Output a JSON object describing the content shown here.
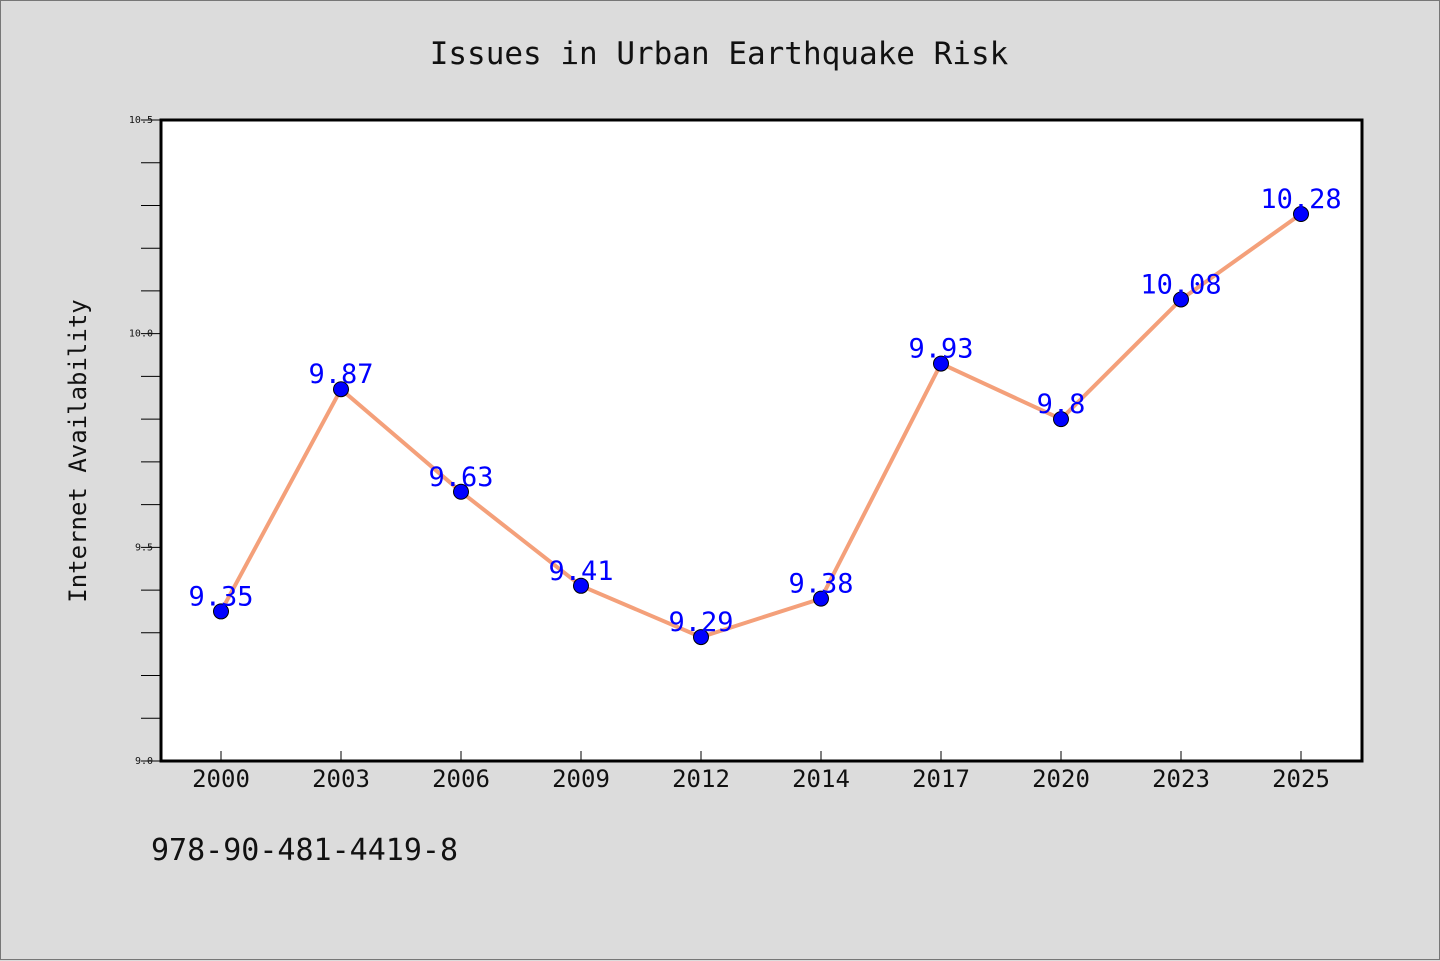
{
  "chart_data": {
    "type": "line",
    "title": "Issues in Urban Earthquake Risk",
    "xlabel": "",
    "ylabel": "Internet Availability",
    "categories": [
      "2000",
      "2003",
      "2006",
      "2009",
      "2012",
      "2014",
      "2017",
      "2020",
      "2023",
      "2025"
    ],
    "series": [
      {
        "values": [
          9.35,
          9.87,
          9.63,
          9.41,
          9.29,
          9.38,
          9.93,
          9.8,
          10.08,
          10.28
        ]
      }
    ],
    "data_labels": [
      "9.35",
      "9.87",
      "9.63",
      "9.41",
      "9.29",
      "9.38",
      "9.93",
      "9.8",
      "10.08",
      "10.28"
    ],
    "ylim": [
      9.0,
      10.5
    ],
    "yticks": [
      "9.0",
      "9.5",
      "10.0",
      "10.5"
    ],
    "grid": false,
    "colors": {
      "line": "#f4a07a",
      "marker": "#0000ff",
      "label": "#0000ff",
      "background": "#dcdcdc",
      "plot": "#ffffff"
    }
  },
  "footer": {
    "isbn": "978-90-481-4419-8"
  }
}
